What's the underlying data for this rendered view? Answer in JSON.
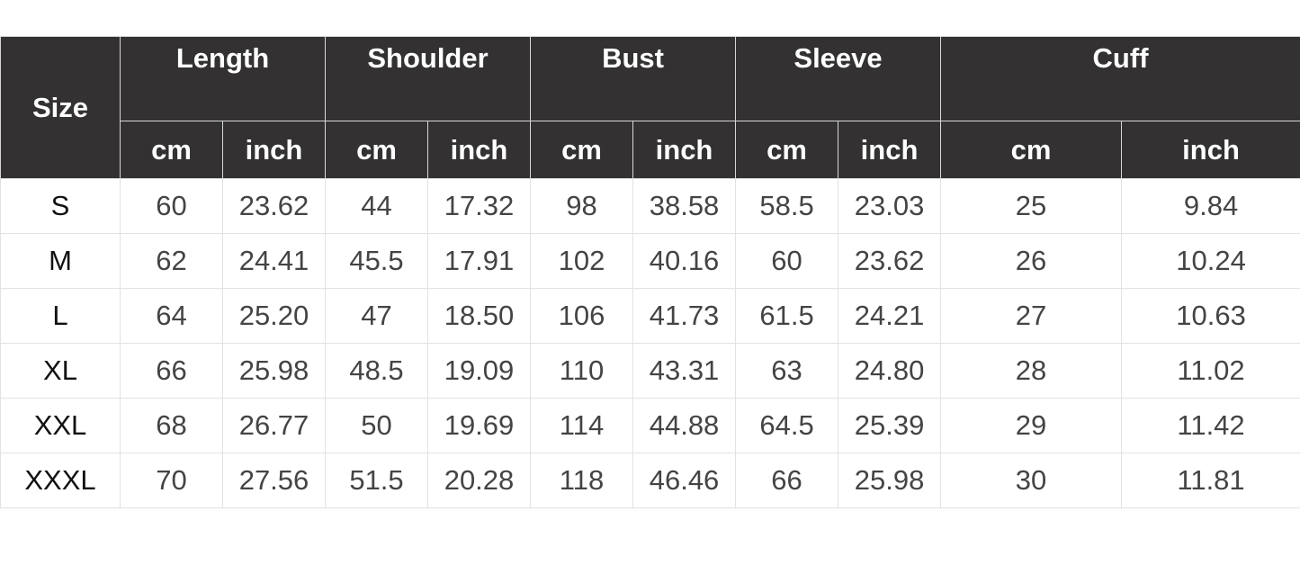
{
  "table": {
    "size_header": "Size",
    "groups": [
      "Length",
      "Shoulder",
      "Bust",
      "Sleeve",
      "Cuff"
    ],
    "units": [
      "cm",
      "inch"
    ],
    "rows": [
      {
        "size": "S",
        "values": [
          "60",
          "23.62",
          "44",
          "17.32",
          "98",
          "38.58",
          "58.5",
          "23.03",
          "25",
          "9.84"
        ]
      },
      {
        "size": "M",
        "values": [
          "62",
          "24.41",
          "45.5",
          "17.91",
          "102",
          "40.16",
          "60",
          "23.62",
          "26",
          "10.24"
        ]
      },
      {
        "size": "L",
        "values": [
          "64",
          "25.20",
          "47",
          "18.50",
          "106",
          "41.73",
          "61.5",
          "24.21",
          "27",
          "10.63"
        ]
      },
      {
        "size": "XL",
        "values": [
          "66",
          "25.98",
          "48.5",
          "19.09",
          "110",
          "43.31",
          "63",
          "24.80",
          "28",
          "11.02"
        ]
      },
      {
        "size": "XXL",
        "values": [
          "68",
          "26.77",
          "50",
          "19.69",
          "114",
          "44.88",
          "64.5",
          "25.39",
          "29",
          "11.42"
        ]
      },
      {
        "size": "XXXL",
        "values": [
          "70",
          "27.56",
          "51.5",
          "20.28",
          "118",
          "46.46",
          "66",
          "25.98",
          "30",
          "11.81"
        ]
      }
    ]
  },
  "colors": {
    "header_bg": "#333132",
    "header_text": "#ffffff",
    "grid": "#e2e2e2"
  }
}
